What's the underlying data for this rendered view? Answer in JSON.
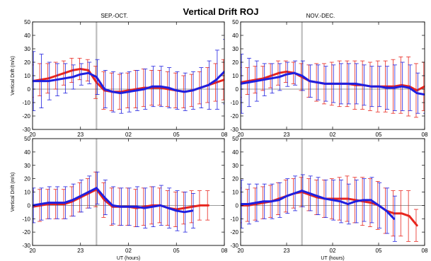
{
  "title": "Vertical Drift ROJ",
  "colors": {
    "series_a": "#e8261e",
    "series_b": "#1f1fe0",
    "divider": "#bdbdbd"
  },
  "chart_data": [
    {
      "type": "line",
      "panel_label": "SEP.-OCT.",
      "ylabel": "Vertical Drift (m/s)",
      "xlabel": "",
      "xlim": [
        20,
        32
      ],
      "ylim": [
        -30,
        50
      ],
      "xticks": [
        20,
        23,
        26,
        29,
        32
      ],
      "xticklabels": [
        "20",
        "23",
        "02",
        "05",
        "08"
      ],
      "yticks": [
        -30,
        -20,
        -10,
        0,
        10,
        20,
        30,
        40,
        50
      ],
      "divider_x": 24,
      "series": [
        {
          "x": [
            20,
            20.5,
            21,
            21.5,
            22,
            22.5,
            23,
            23.5,
            24,
            24.5,
            25,
            25.5,
            26,
            26.5,
            27,
            27.5,
            28,
            28.5,
            29,
            29.5,
            30,
            30.5,
            31,
            31.5,
            32
          ],
          "y": [
            6,
            7,
            8,
            10,
            12,
            14,
            15,
            14,
            5,
            -1,
            -2,
            -2,
            -1,
            0,
            1,
            1,
            1,
            0,
            -1,
            -2,
            -1,
            1,
            3,
            5,
            7
          ],
          "err": [
            12,
            12,
            11,
            10,
            9,
            9,
            8,
            8,
            12,
            14,
            14,
            13,
            13,
            14,
            14,
            13,
            13,
            13,
            13,
            12,
            12,
            12,
            13,
            14,
            15
          ]
        },
        {
          "x": [
            20,
            20.5,
            21,
            21.5,
            22,
            22.5,
            23,
            23.5,
            24,
            24.5,
            25,
            25.5,
            26,
            26.5,
            27,
            27.5,
            28,
            28.5,
            29,
            29.5,
            30,
            30.5,
            31,
            31.5,
            32
          ],
          "y": [
            6,
            6,
            6,
            7,
            8,
            9,
            11,
            12,
            9,
            0,
            -2,
            -3,
            -2,
            -1,
            0,
            2,
            2,
            1,
            -1,
            -2,
            -1,
            1,
            3,
            7,
            13
          ],
          "err": [
            22,
            20,
            14,
            12,
            11,
            9,
            8,
            8,
            13,
            14,
            15,
            15,
            15,
            15,
            15,
            15,
            15,
            15,
            14,
            14,
            14,
            15,
            18,
            22,
            24
          ]
        }
      ]
    },
    {
      "type": "line",
      "panel_label": "NOV.-DEC.",
      "ylabel": "",
      "xlabel": "",
      "xlim": [
        20,
        32
      ],
      "ylim": [
        -30,
        50
      ],
      "xticks": [
        20,
        23,
        26,
        29,
        32
      ],
      "xticklabels": [
        "20",
        "23",
        "02",
        "05",
        "08"
      ],
      "yticks": [
        -30,
        -20,
        -10,
        0,
        10,
        20,
        30,
        40,
        50
      ],
      "divider_x": 24,
      "series": [
        {
          "x": [
            20,
            20.5,
            21,
            21.5,
            22,
            22.5,
            23,
            23.5,
            24,
            24.5,
            25,
            25.5,
            26,
            26.5,
            27,
            27.5,
            28,
            28.5,
            29,
            29.5,
            30,
            30.5,
            31,
            31.5,
            32
          ],
          "y": [
            5,
            6,
            7,
            8,
            10,
            12,
            13,
            12,
            9,
            6,
            5,
            4,
            4,
            4,
            4,
            3,
            3,
            2,
            2,
            2,
            2,
            3,
            2,
            -1,
            2
          ],
          "err": [
            11,
            10,
            10,
            9,
            9,
            9,
            8,
            8,
            10,
            12,
            14,
            15,
            16,
            17,
            17,
            18,
            18,
            18,
            19,
            19,
            20,
            21,
            22,
            20,
            18
          ]
        },
        {
          "x": [
            20,
            20.5,
            21,
            21.5,
            22,
            22.5,
            23,
            23.5,
            24,
            24.5,
            25,
            25.5,
            26,
            26.5,
            27,
            27.5,
            28,
            28.5,
            29,
            29.5,
            30,
            30.5,
            31,
            31.5,
            32
          ],
          "y": [
            4,
            5,
            6,
            7,
            8,
            9,
            11,
            12,
            10,
            6,
            5,
            4,
            4,
            4,
            4,
            4,
            3,
            2,
            2,
            1,
            1,
            2,
            1,
            -3,
            -4
          ],
          "err": [
            22,
            18,
            15,
            12,
            11,
            10,
            9,
            9,
            11,
            12,
            13,
            13,
            14,
            15,
            15,
            15,
            15,
            15,
            15,
            16,
            17,
            18,
            17,
            15,
            14
          ]
        }
      ]
    },
    {
      "type": "line",
      "panel_label": "",
      "ylabel": "Vertical Drift (m/s)",
      "xlabel": "UT (hours)",
      "xlim": [
        20,
        32
      ],
      "ylim": [
        -30,
        50
      ],
      "xticks": [
        20,
        23,
        26,
        29,
        32
      ],
      "xticklabels": [
        "20",
        "23",
        "02",
        "05",
        "08"
      ],
      "yticks": [
        -30,
        -20,
        -10,
        0,
        10,
        20,
        30,
        40,
        50
      ],
      "divider_x": 24,
      "series": [
        {
          "x": [
            20,
            20.5,
            21,
            21.5,
            22,
            22.5,
            23,
            23.5,
            24,
            24.5,
            25,
            25.5,
            26,
            26.5,
            27,
            27.5,
            28,
            28.5,
            29,
            29.5,
            30,
            30.5,
            31
          ],
          "y": [
            -1,
            0,
            1,
            1,
            1,
            3,
            6,
            9,
            12,
            4,
            -1,
            -1,
            -1,
            -2,
            -1,
            0,
            0,
            -2,
            -3,
            -2,
            -1,
            0,
            0
          ],
          "err": [
            12,
            12,
            11,
            11,
            11,
            11,
            11,
            11,
            13,
            13,
            14,
            14,
            14,
            14,
            14,
            14,
            13,
            13,
            13,
            12,
            12,
            11,
            11
          ]
        },
        {
          "x": [
            20,
            20.5,
            21,
            21.5,
            22,
            22.5,
            23,
            23.5,
            24,
            24.5,
            25,
            25.5,
            26,
            26.5,
            27,
            27.5,
            28,
            28.5,
            29,
            29.5,
            30
          ],
          "y": [
            0,
            1,
            2,
            2,
            2,
            4,
            7,
            10,
            13,
            6,
            0,
            -1,
            -1,
            -1,
            -2,
            -1,
            0,
            -2,
            -4,
            -5,
            -4
          ],
          "err": [
            13,
            12,
            12,
            12,
            12,
            12,
            12,
            12,
            12,
            13,
            14,
            14,
            14,
            15,
            15,
            15,
            15,
            15,
            15,
            15,
            13
          ]
        }
      ]
    },
    {
      "type": "line",
      "panel_label": "",
      "ylabel": "",
      "xlabel": "UT (hours)",
      "xlim": [
        20,
        32
      ],
      "ylim": [
        -30,
        50
      ],
      "xticks": [
        20,
        23,
        26,
        29,
        32
      ],
      "xticklabels": [
        "20",
        "23",
        "02",
        "05",
        "08"
      ],
      "yticks": [
        -30,
        -20,
        -10,
        0,
        10,
        20,
        30,
        40,
        50
      ],
      "divider_x": 24,
      "series": [
        {
          "x": [
            20,
            20.5,
            21,
            21.5,
            22,
            22.5,
            23,
            23.5,
            24,
            24.5,
            25,
            25.5,
            26,
            26.5,
            27,
            27.5,
            28,
            28.5,
            29,
            29.5,
            30,
            30.5,
            31,
            31.5
          ],
          "y": [
            0,
            0,
            1,
            2,
            3,
            5,
            7,
            9,
            10,
            8,
            6,
            5,
            5,
            5,
            5,
            4,
            3,
            2,
            0,
            -4,
            -6,
            -6,
            -8,
            -15
          ],
          "err": [
            13,
            12,
            12,
            12,
            12,
            12,
            12,
            11,
            11,
            12,
            13,
            14,
            15,
            16,
            17,
            17,
            18,
            18,
            18,
            17,
            17,
            17,
            19,
            12
          ]
        },
        {
          "x": [
            20,
            20.5,
            21,
            21.5,
            22,
            22.5,
            23,
            23.5,
            24,
            24.5,
            25,
            25.5,
            26,
            26.5,
            27,
            27.5,
            28,
            28.5,
            29,
            29.5,
            30
          ],
          "y": [
            1,
            1,
            2,
            3,
            3,
            4,
            7,
            9,
            11,
            9,
            7,
            5,
            4,
            3,
            1,
            3,
            4,
            4,
            0,
            -4,
            -10
          ],
          "err": [
            18,
            15,
            14,
            13,
            13,
            13,
            13,
            13,
            12,
            13,
            14,
            14,
            15,
            16,
            15,
            16,
            16,
            17,
            17,
            17,
            17
          ]
        }
      ]
    }
  ]
}
